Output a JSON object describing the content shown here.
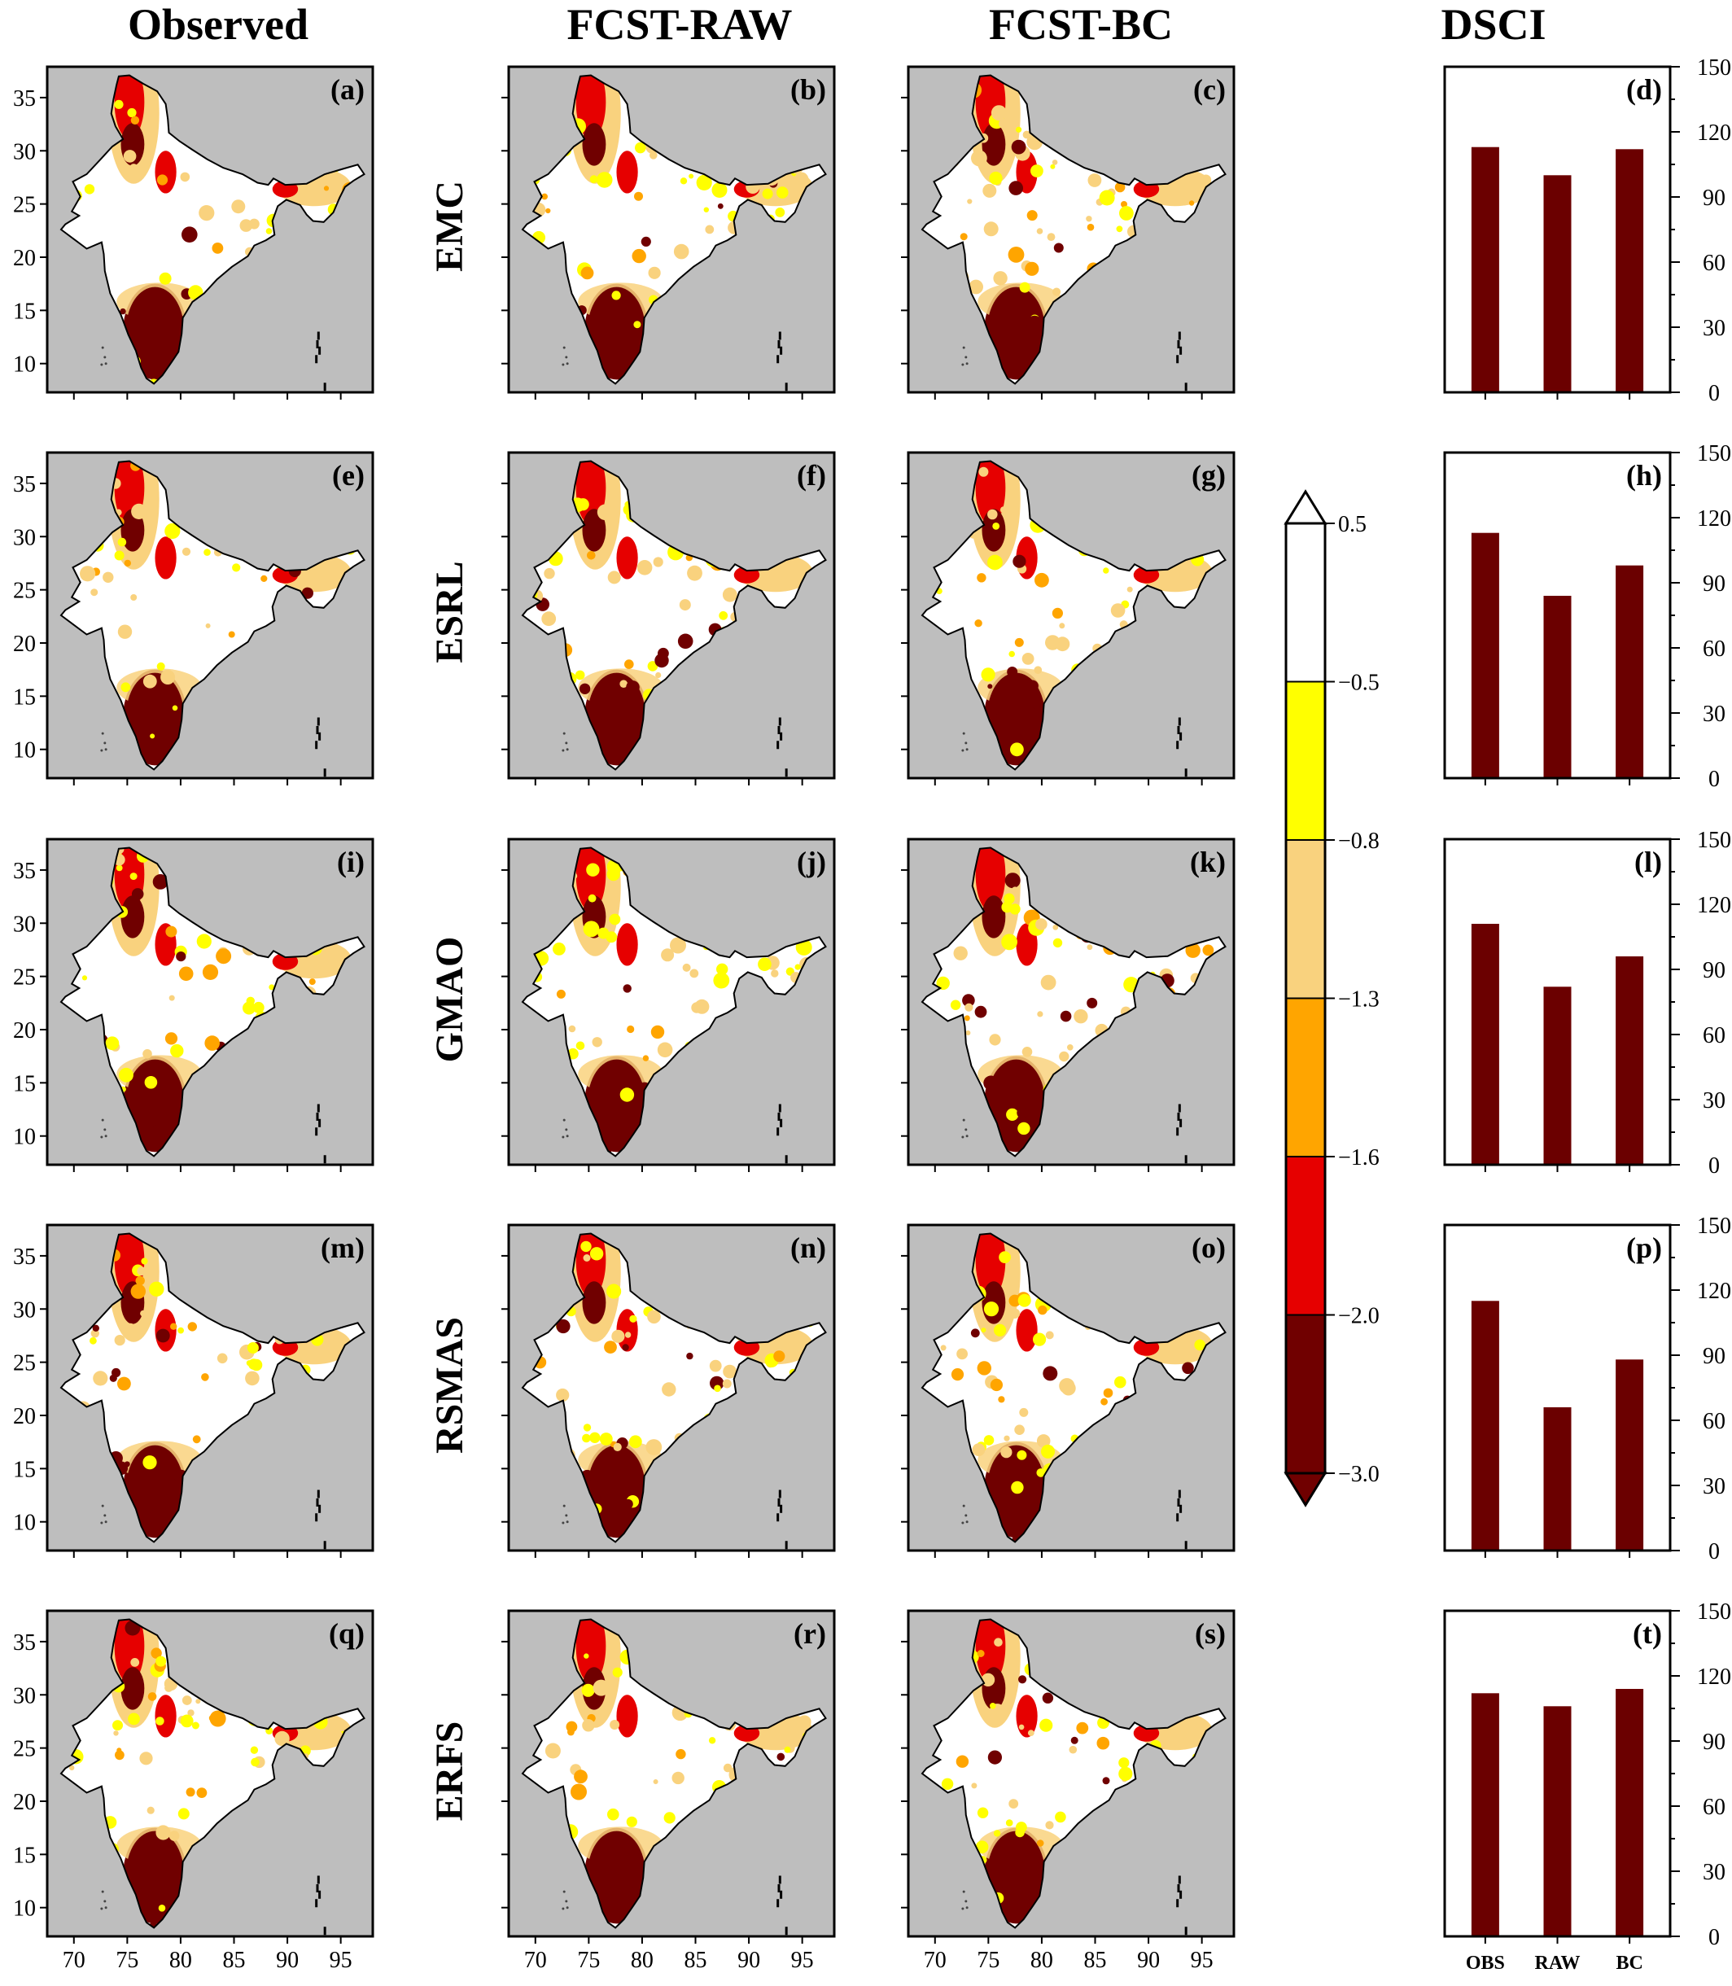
{
  "columns": [
    "Observed",
    "FCST-RAW",
    "FCST-BC",
    "DSCI"
  ],
  "rows": [
    "EMC",
    "ESRL",
    "GMAO",
    "RSMAS",
    "ERFS"
  ],
  "map_panel_labels": [
    [
      "(a)",
      "(b)",
      "(c)"
    ],
    [
      "(e)",
      "(f)",
      "(g)"
    ],
    [
      "(i)",
      "(j)",
      "(k)"
    ],
    [
      "(m)",
      "(n)",
      "(o)"
    ],
    [
      "(q)",
      "(r)",
      "(s)"
    ]
  ],
  "map_axes": {
    "lat_ticks": [
      "35",
      "30",
      "25",
      "20",
      "15",
      "10"
    ],
    "lon_ticks": [
      "70",
      "75",
      "80",
      "85",
      "90",
      "95"
    ]
  },
  "colorbar": {
    "levels": [
      "0.5",
      "−0.5",
      "−0.8",
      "−1.3",
      "−1.6",
      "−2.0",
      "−3.0"
    ],
    "colors": [
      "#ffffff",
      "#ffff00",
      "#f9d27e",
      "#ffa500",
      "#e60000",
      "#700000"
    ]
  },
  "colors": {
    "land_bg": "#bebebe",
    "bar": "#6b0000"
  },
  "chart_data": [
    {
      "type": "bar",
      "label": "(d)",
      "categories": [
        "OBS",
        "RAW",
        "BC"
      ],
      "values": [
        113,
        100,
        112
      ],
      "ylim": [
        0,
        150
      ],
      "yticks": [
        "0",
        "30",
        "60",
        "90",
        "120",
        "150"
      ]
    },
    {
      "type": "bar",
      "label": "(h)",
      "categories": [
        "OBS",
        "RAW",
        "BC"
      ],
      "values": [
        113,
        84,
        98
      ],
      "ylim": [
        0,
        150
      ],
      "yticks": [
        "0",
        "30",
        "60",
        "90",
        "120",
        "150"
      ]
    },
    {
      "type": "bar",
      "label": "(l)",
      "categories": [
        "OBS",
        "RAW",
        "BC"
      ],
      "values": [
        111,
        82,
        96
      ],
      "ylim": [
        0,
        150
      ],
      "yticks": [
        "0",
        "30",
        "60",
        "90",
        "120",
        "150"
      ]
    },
    {
      "type": "bar",
      "label": "(p)",
      "categories": [
        "OBS",
        "RAW",
        "BC"
      ],
      "values": [
        115,
        66,
        88
      ],
      "ylim": [
        0,
        150
      ],
      "yticks": [
        "0",
        "30",
        "60",
        "90",
        "120",
        "150"
      ]
    },
    {
      "type": "bar",
      "label": "(t)",
      "categories": [
        "OBS",
        "RAW",
        "BC"
      ],
      "values": [
        112,
        106,
        114
      ],
      "ylim": [
        0,
        150
      ],
      "yticks": [
        "0",
        "30",
        "60",
        "90",
        "120",
        "150"
      ]
    }
  ]
}
